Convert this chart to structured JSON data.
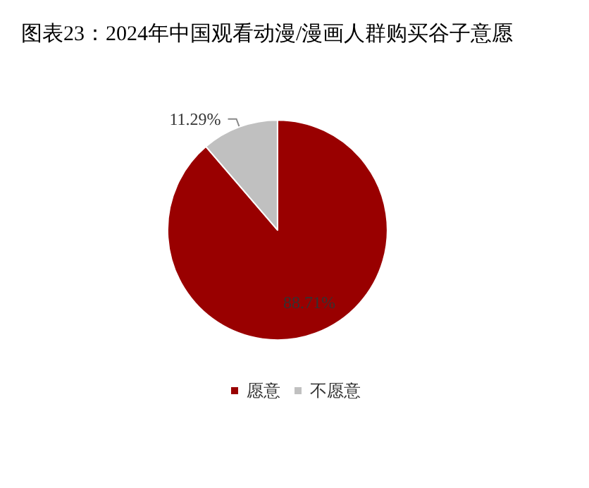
{
  "chart_data": {
    "type": "pie",
    "title": "图表23：2024年中国观看动漫/漫画人群购买谷子意愿",
    "categories": [
      "愿意",
      "不愿意"
    ],
    "values": [
      88.71,
      11.29
    ],
    "colors": [
      "#990000",
      "#c0c0c0"
    ],
    "value_labels": [
      "88.71%",
      "11.29%"
    ],
    "legend": "bottom"
  }
}
